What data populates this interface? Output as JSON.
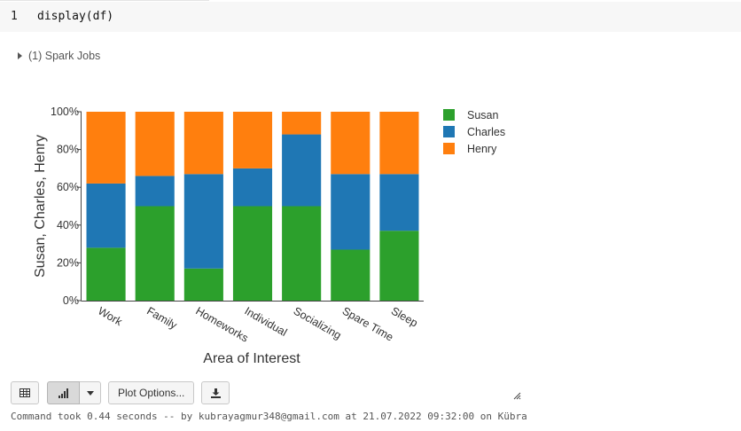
{
  "cell": {
    "line_number": "1",
    "code": "display(df)"
  },
  "spark_jobs": {
    "label": "(1) Spark Jobs"
  },
  "chart_data": {
    "type": "bar",
    "stacked": "percent",
    "categories": [
      "Work",
      "Family",
      "Homeworks",
      "Individual",
      "Socializing",
      "Spare Time",
      "Sleep"
    ],
    "series": [
      {
        "name": "Susan",
        "color": "#2ca02c",
        "values": [
          28,
          50,
          17,
          50,
          50,
          27,
          37
        ]
      },
      {
        "name": "Charles",
        "color": "#1f77b4",
        "values": [
          34,
          16,
          50,
          20,
          38,
          40,
          30
        ]
      },
      {
        "name": "Henry",
        "color": "#ff7f0e",
        "values": [
          38,
          34,
          33,
          30,
          12,
          33,
          33
        ]
      }
    ],
    "xlabel": "Area of Interest",
    "ylabel": "Susan, Charles, Henry",
    "ylim": [
      0,
      100
    ],
    "yticks": [
      "0%",
      "20%",
      "40%",
      "60%",
      "80%",
      "100%"
    ],
    "legend_position": "top-right",
    "grid": false
  },
  "toolbar": {
    "table_icon": "table-icon",
    "chart_icon": "bar-chart-icon",
    "dropdown_icon": "caret-down-icon",
    "plot_options_label": "Plot Options...",
    "download_icon": "download-icon"
  },
  "status": {
    "text": "Command took 0.44 seconds -- by kubrayagmur348@gmail.com at 21.07.2022 09:32:00 on Kübra"
  }
}
